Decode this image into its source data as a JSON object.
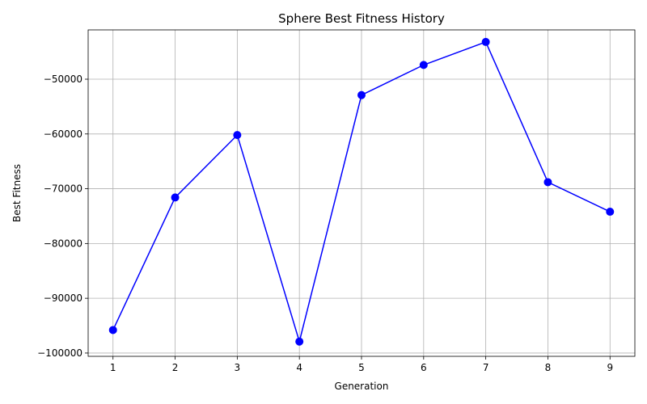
{
  "chart_data": {
    "type": "line",
    "title": "Sphere Best Fitness History",
    "xlabel": "Generation",
    "ylabel": "Best Fitness",
    "x": [
      1,
      2,
      3,
      4,
      5,
      6,
      7,
      8,
      9
    ],
    "x_ticks": [
      1,
      2,
      3,
      4,
      5,
      6,
      7,
      8,
      9
    ],
    "y_ticks": [
      -100000,
      -90000,
      -80000,
      -70000,
      -60000,
      -50000
    ],
    "y_tick_labels": [
      "−100000",
      "−90000",
      "−80000",
      "−70000",
      "−60000",
      "−50000"
    ],
    "xlim": [
      0.6,
      9.4
    ],
    "ylim": [
      -100600,
      -41000
    ],
    "grid": true,
    "series": [
      {
        "values": [
          -95800,
          -71600,
          -60200,
          -97900,
          -52900,
          -47400,
          -43200,
          -68800,
          -74200
        ],
        "color": "#0000ff",
        "marker": "circle"
      }
    ]
  }
}
